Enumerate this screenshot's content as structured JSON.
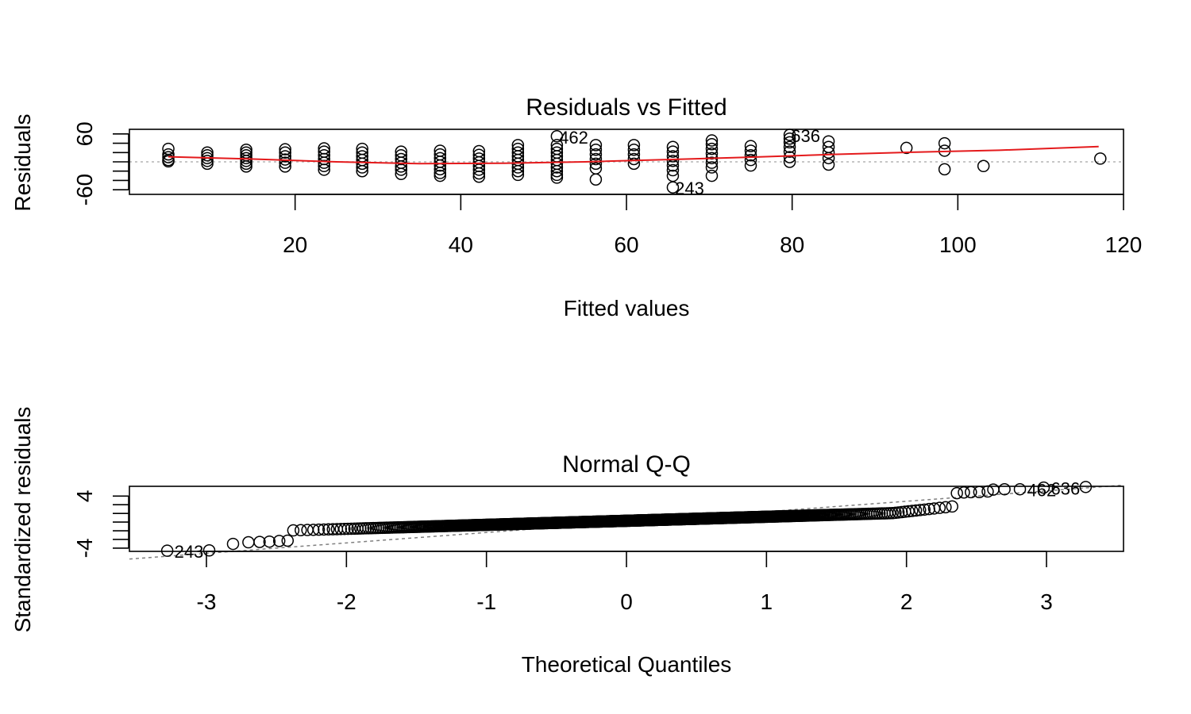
{
  "chart_data": [
    {
      "type": "scatter",
      "title": "Residuals vs Fitted",
      "xlabel": "Fitted values",
      "ylabel": "Residuals",
      "xlim": [
        0,
        120
      ],
      "ylim": [
        -70,
        70
      ],
      "xticks": [
        20,
        40,
        60,
        80,
        100,
        120
      ],
      "yticks": [
        -60,
        60
      ],
      "grid": false,
      "reference_line": {
        "y": 0,
        "style": "dotted",
        "color": "#b3b3b3"
      },
      "smoother_color": "#e41a1c",
      "point_labels": [
        {
          "label": "462",
          "x": 51,
          "y": 55
        },
        {
          "label": "636",
          "x": 79,
          "y": 58
        },
        {
          "label": "243",
          "x": 65,
          "y": -55
        }
      ],
      "groups": [
        {
          "x": 4.7,
          "y": [
            28,
            16,
            10,
            4,
            1
          ]
        },
        {
          "x": 9.4,
          "y": [
            20,
            14,
            8,
            2,
            -4
          ]
        },
        {
          "x": 14.1,
          "y": [
            26,
            20,
            14,
            8,
            2,
            -4,
            -10
          ]
        },
        {
          "x": 18.8,
          "y": [
            27,
            20,
            12,
            5,
            -2,
            -10
          ]
        },
        {
          "x": 23.5,
          "y": [
            29,
            22,
            14,
            6,
            -2,
            -9,
            -17
          ]
        },
        {
          "x": 28.1,
          "y": [
            28,
            20,
            12,
            4,
            -4,
            -12,
            -20
          ]
        },
        {
          "x": 32.8,
          "y": [
            22,
            14,
            6,
            -2,
            -10,
            -17,
            -26
          ]
        },
        {
          "x": 37.5,
          "y": [
            24,
            16,
            8,
            0,
            -8,
            -16,
            -24,
            -30
          ]
        },
        {
          "x": 42.2,
          "y": [
            23,
            15,
            7,
            -1,
            -9,
            -17,
            -25,
            -32
          ]
        },
        {
          "x": 46.9,
          "y": [
            36,
            28,
            20,
            12,
            4,
            -4,
            -12,
            -20,
            -28
          ]
        },
        {
          "x": 51.6,
          "y": [
            55,
            36,
            28,
            20,
            12,
            4,
            -4,
            -12,
            -20,
            -28,
            -34
          ]
        },
        {
          "x": 56.3,
          "y": [
            36,
            26,
            16,
            6,
            -4,
            -14,
            -38
          ]
        },
        {
          "x": 60.9,
          "y": [
            36,
            26,
            16,
            6,
            -4
          ]
        },
        {
          "x": 65.6,
          "y": [
            32,
            22,
            12,
            2,
            -8,
            -18,
            -30,
            -55
          ]
        },
        {
          "x": 70.3,
          "y": [
            46,
            38,
            28,
            18,
            8,
            -2,
            -12,
            -30
          ]
        },
        {
          "x": 75.0,
          "y": [
            34,
            24,
            14,
            4,
            -8
          ]
        },
        {
          "x": 79.7,
          "y": [
            58,
            50,
            42,
            32,
            22,
            10,
            0
          ]
        },
        {
          "x": 84.4,
          "y": [
            44,
            32,
            20,
            8,
            -6
          ]
        },
        {
          "x": 93.8,
          "y": [
            30
          ]
        },
        {
          "x": 98.4,
          "y": [
            40,
            24,
            -16
          ]
        },
        {
          "x": 103.1,
          "y": [
            -9
          ]
        },
        {
          "x": 117.2,
          "y": [
            7
          ]
        }
      ],
      "smoother": {
        "x": [
          4.7,
          15,
          25,
          35,
          45,
          55,
          65,
          75,
          85,
          95,
          105,
          117
        ],
        "y": [
          11,
          6,
          0,
          -4,
          -3,
          0,
          5,
          10,
          16,
          21,
          25,
          33
        ]
      }
    },
    {
      "type": "scatter",
      "title": "Normal Q-Q",
      "xlabel": "Theoretical Quantiles",
      "ylabel": "Standardized residuals",
      "xlim": [
        -3.55,
        3.55
      ],
      "ylim": [
        -4.5,
        5.5
      ],
      "xticks": [
        -3,
        -2,
        -1,
        0,
        1,
        2,
        3
      ],
      "yticks": [
        -4,
        4
      ],
      "grid": false,
      "reference_line": {
        "slope": 1.6,
        "intercept": 0,
        "style": "dashed",
        "color": "#808080"
      },
      "n_points": 750,
      "upper_tail": [
        {
          "x": 2.36,
          "y": 4.45
        },
        {
          "x": 2.41,
          "y": 4.55
        },
        {
          "x": 2.46,
          "y": 4.6
        },
        {
          "x": 2.52,
          "y": 4.62
        },
        {
          "x": 2.58,
          "y": 4.7
        },
        {
          "x": 2.62,
          "y": 5.0
        },
        {
          "x": 2.7,
          "y": 5.05
        },
        {
          "x": 2.81,
          "y": 5.05
        },
        {
          "x": 2.98,
          "y": 5.3
        },
        {
          "x": 3.28,
          "y": 5.4
        }
      ],
      "lower_tail": [
        {
          "x": -3.28,
          "y": -4.4
        },
        {
          "x": -2.98,
          "y": -4.35
        },
        {
          "x": -2.81,
          "y": -3.35
        },
        {
          "x": -2.7,
          "y": -3.1
        },
        {
          "x": -2.62,
          "y": -3.05
        },
        {
          "x": -2.55,
          "y": -3.0
        },
        {
          "x": -2.48,
          "y": -2.9
        },
        {
          "x": -2.42,
          "y": -2.85
        }
      ],
      "point_labels": [
        {
          "label": "462",
          "x": 2.81,
          "y": 5.05
        },
        {
          "label": "636",
          "x": 2.98,
          "y": 5.3
        },
        {
          "label": "243",
          "x": -3.28,
          "y": -4.4
        }
      ]
    }
  ]
}
